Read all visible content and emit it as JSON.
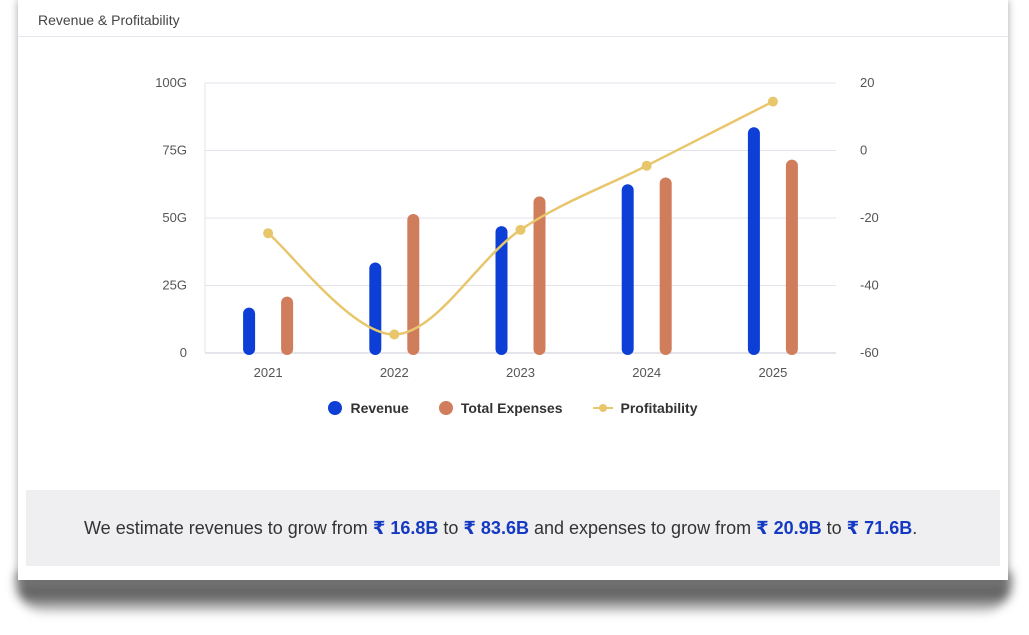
{
  "card": {
    "title": "Revenue & Profitability"
  },
  "colors": {
    "revenue": "#0d3fd6",
    "expenses": "#d07d5c",
    "profitability": "#e8c66c",
    "grid": "#e3e3ec",
    "axis_text": "#555555"
  },
  "chart_data": {
    "type": "bar",
    "categories": [
      "2021",
      "2022",
      "2023",
      "2024",
      "2025"
    ],
    "series": [
      {
        "name": "Revenue",
        "type": "bar",
        "axis": "left",
        "values": [
          16.8,
          33.5,
          47,
          62.5,
          83.6
        ]
      },
      {
        "name": "Total Expenses",
        "type": "bar",
        "axis": "left",
        "values": [
          20.9,
          51.5,
          58,
          65,
          71.6
        ]
      },
      {
        "name": "Profitability",
        "type": "line",
        "axis": "right",
        "smooth": true,
        "values": [
          -24.5,
          -54.5,
          -23.5,
          -4.5,
          14.5
        ]
      }
    ],
    "ylim_left": [
      0,
      100
    ],
    "yticks_left": [
      "0",
      "25G",
      "50G",
      "75G",
      "100G"
    ],
    "yticks_left_values": [
      0,
      25,
      50,
      75,
      100
    ],
    "ylim_right": [
      -60,
      20
    ],
    "yticks_right": [
      "-60",
      "-40",
      "-20",
      "0",
      "20"
    ],
    "yticks_right_values": [
      -60,
      -40,
      -20,
      0,
      20
    ],
    "grid": true,
    "legend_position": "bottom"
  },
  "summary": {
    "prefix": "We estimate revenues to grow from ",
    "rev_from": "₹ 16.8B",
    "to1": " to ",
    "rev_to": "₹ 83.6B",
    "middle": " and expenses to grow from ",
    "exp_from": "₹ 20.9B",
    "to2": " to ",
    "exp_to": "₹ 71.6B",
    "suffix": "."
  }
}
